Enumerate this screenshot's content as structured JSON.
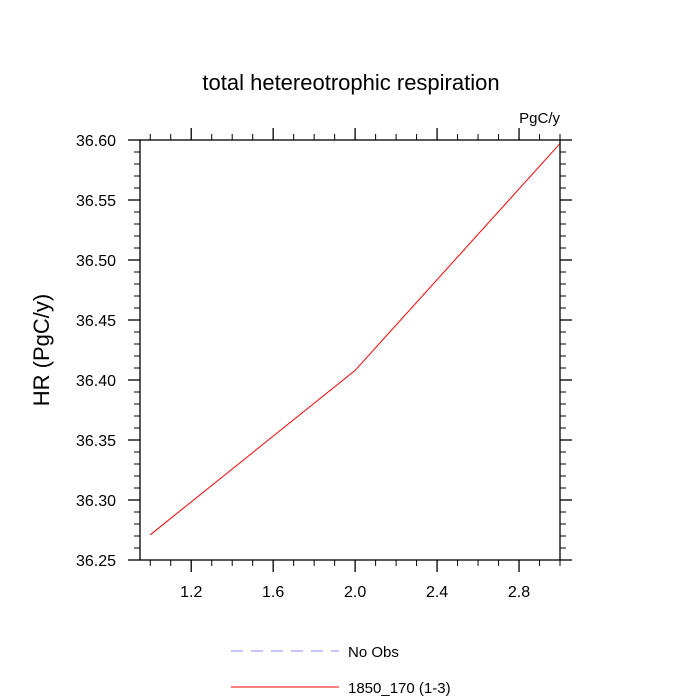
{
  "chart_data": {
    "type": "line",
    "title": "total hetereotrophic respiration",
    "units": "PgC/y",
    "xlabel": "",
    "ylabel": "HR  (PgC/y)",
    "xlim": [
      0.95,
      3.0
    ],
    "ylim": [
      36.25,
      36.6
    ],
    "xticks": [
      1.2,
      1.6,
      2.0,
      2.4,
      2.8
    ],
    "xtick_labels": [
      "1.2",
      "1.6",
      "2.0",
      "2.4",
      "2.8"
    ],
    "yticks": [
      36.25,
      36.3,
      36.35,
      36.4,
      36.45,
      36.5,
      36.55,
      36.6
    ],
    "ytick_labels": [
      "36.25",
      "36.30",
      "36.35",
      "36.40",
      "36.45",
      "36.50",
      "36.55",
      "36.60"
    ],
    "series": [
      {
        "name": "No Obs",
        "color": "#8888ff",
        "dashed": true,
        "x": [],
        "y": []
      },
      {
        "name": "1850_170 (1-3)",
        "color": "#ff0000",
        "dashed": false,
        "x": [
          1.0,
          2.0,
          3.0
        ],
        "y": [
          36.271,
          36.408,
          36.597
        ]
      }
    ],
    "legend": {
      "position": "bottom-center"
    }
  }
}
